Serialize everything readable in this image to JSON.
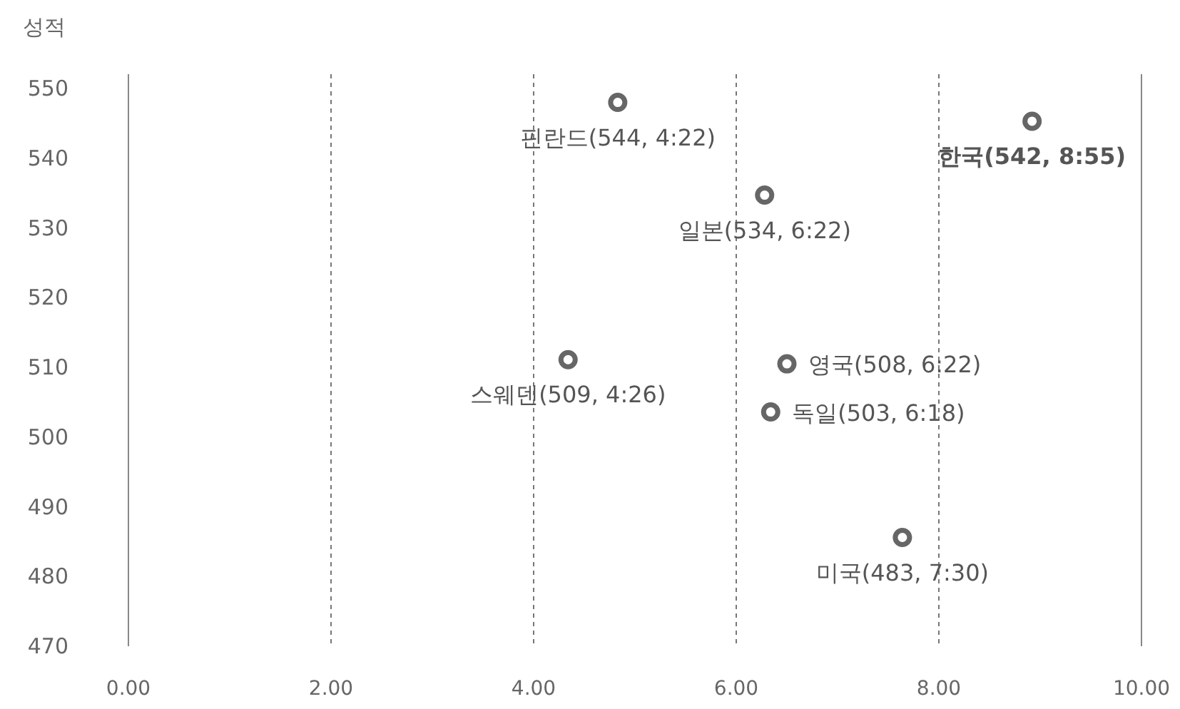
{
  "chart_data": {
    "type": "scatter",
    "ylabel": "성적",
    "xlim": [
      0,
      10
    ],
    "ylim": [
      470,
      550
    ],
    "xticks": [
      {
        "value": 0,
        "label": "0.00"
      },
      {
        "value": 2,
        "label": "2.00"
      },
      {
        "value": 4,
        "label": "4.00"
      },
      {
        "value": 6,
        "label": "6.00"
      },
      {
        "value": 8,
        "label": "8.00"
      },
      {
        "value": 10,
        "label": "10.00"
      }
    ],
    "yticks": [
      470,
      480,
      490,
      500,
      510,
      520,
      530,
      540,
      550
    ],
    "grid": "x",
    "marker": "circle",
    "series": [
      {
        "color": "#666666",
        "x": [
          4.83,
          8.92,
          6.28,
          4.34,
          6.5,
          6.34,
          7.64
        ],
        "values": [
          548,
          545.3,
          534.7,
          511.1,
          510.5,
          503.6,
          485.6
        ],
        "value_labels": [
          "핀란드(544, 4:22)",
          "**한국(542, 8:55)**",
          "일본(534, 6:22)",
          "스웨덴(509, 4:26)",
          "영국(508, 6:22)",
          "독일(503, 6:18)",
          "미국(483, 7:30)"
        ]
      }
    ]
  }
}
